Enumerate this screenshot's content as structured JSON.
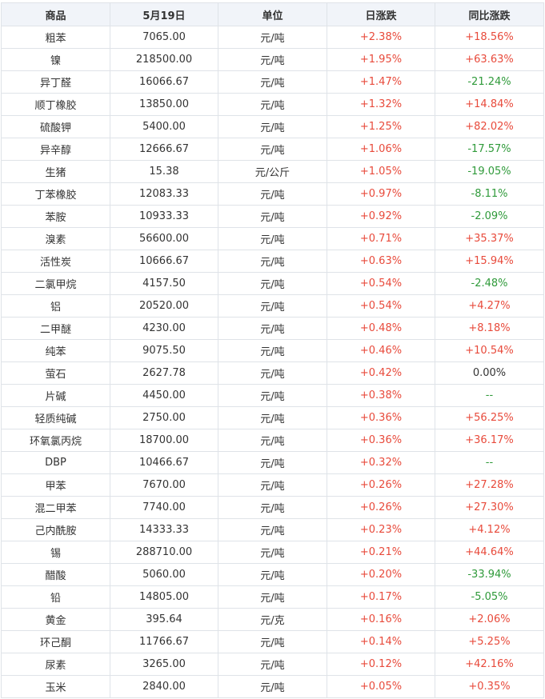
{
  "table": {
    "headers": {
      "commodity": "商品",
      "price": "5月19日",
      "unit": "单位",
      "daily_change": "日涨跌",
      "yoy_change": "同比涨跌"
    },
    "colors": {
      "up": "#e84a3b",
      "down": "#2f9a3a",
      "header_bg": "#f1f4f9",
      "border": "#dfe3e8"
    },
    "rows": [
      {
        "name": "粗苯",
        "price": "7065.00",
        "unit": "元/吨",
        "daily": "+2.38%",
        "yoy": "+18.56%"
      },
      {
        "name": "镍",
        "price": "218500.00",
        "unit": "元/吨",
        "daily": "+1.95%",
        "yoy": "+63.63%"
      },
      {
        "name": "异丁醛",
        "price": "16066.67",
        "unit": "元/吨",
        "daily": "+1.47%",
        "yoy": "-21.24%"
      },
      {
        "name": "顺丁橡胶",
        "price": "13850.00",
        "unit": "元/吨",
        "daily": "+1.32%",
        "yoy": "+14.84%"
      },
      {
        "name": "硫酸钾",
        "price": "5400.00",
        "unit": "元/吨",
        "daily": "+1.25%",
        "yoy": "+82.02%"
      },
      {
        "name": "异辛醇",
        "price": "12666.67",
        "unit": "元/吨",
        "daily": "+1.06%",
        "yoy": "-17.57%"
      },
      {
        "name": "生猪",
        "price": "15.38",
        "unit": "元/公斤",
        "daily": "+1.05%",
        "yoy": "-19.05%"
      },
      {
        "name": "丁苯橡胶",
        "price": "12083.33",
        "unit": "元/吨",
        "daily": "+0.97%",
        "yoy": "-8.11%"
      },
      {
        "name": "苯胺",
        "price": "10933.33",
        "unit": "元/吨",
        "daily": "+0.92%",
        "yoy": "-2.09%"
      },
      {
        "name": "溴素",
        "price": "56600.00",
        "unit": "元/吨",
        "daily": "+0.71%",
        "yoy": "+35.37%"
      },
      {
        "name": "活性炭",
        "price": "10666.67",
        "unit": "元/吨",
        "daily": "+0.63%",
        "yoy": "+15.94%"
      },
      {
        "name": "二氯甲烷",
        "price": "4157.50",
        "unit": "元/吨",
        "daily": "+0.54%",
        "yoy": "-2.48%"
      },
      {
        "name": "铝",
        "price": "20520.00",
        "unit": "元/吨",
        "daily": "+0.54%",
        "yoy": "+4.27%"
      },
      {
        "name": "二甲醚",
        "price": "4230.00",
        "unit": "元/吨",
        "daily": "+0.48%",
        "yoy": "+8.18%"
      },
      {
        "name": "纯苯",
        "price": "9075.50",
        "unit": "元/吨",
        "daily": "+0.46%",
        "yoy": "+10.54%"
      },
      {
        "name": "萤石",
        "price": "2627.78",
        "unit": "元/吨",
        "daily": "+0.42%",
        "yoy": "0.00%"
      },
      {
        "name": "片碱",
        "price": "4450.00",
        "unit": "元/吨",
        "daily": "+0.38%",
        "yoy": "--"
      },
      {
        "name": "轻质纯碱",
        "price": "2750.00",
        "unit": "元/吨",
        "daily": "+0.36%",
        "yoy": "+56.25%"
      },
      {
        "name": "环氧氯丙烷",
        "price": "18700.00",
        "unit": "元/吨",
        "daily": "+0.36%",
        "yoy": "+36.17%"
      },
      {
        "name": "DBP",
        "price": "10466.67",
        "unit": "元/吨",
        "daily": "+0.32%",
        "yoy": "--"
      },
      {
        "name": "甲苯",
        "price": "7670.00",
        "unit": "元/吨",
        "daily": "+0.26%",
        "yoy": "+27.28%"
      },
      {
        "name": "混二甲苯",
        "price": "7740.00",
        "unit": "元/吨",
        "daily": "+0.26%",
        "yoy": "+27.30%"
      },
      {
        "name": "己内酰胺",
        "price": "14333.33",
        "unit": "元/吨",
        "daily": "+0.23%",
        "yoy": "+4.12%"
      },
      {
        "name": "锡",
        "price": "288710.00",
        "unit": "元/吨",
        "daily": "+0.21%",
        "yoy": "+44.64%"
      },
      {
        "name": "醋酸",
        "price": "5060.00",
        "unit": "元/吨",
        "daily": "+0.20%",
        "yoy": "-33.94%"
      },
      {
        "name": "铅",
        "price": "14805.00",
        "unit": "元/吨",
        "daily": "+0.17%",
        "yoy": "-5.05%"
      },
      {
        "name": "黄金",
        "price": "395.64",
        "unit": "元/克",
        "daily": "+0.16%",
        "yoy": "+2.06%"
      },
      {
        "name": "环己酮",
        "price": "11766.67",
        "unit": "元/吨",
        "daily": "+0.14%",
        "yoy": "+5.25%"
      },
      {
        "name": "尿素",
        "price": "3265.00",
        "unit": "元/吨",
        "daily": "+0.12%",
        "yoy": "+42.16%"
      },
      {
        "name": "玉米",
        "price": "2840.00",
        "unit": "元/吨",
        "daily": "+0.05%",
        "yoy": "+0.35%"
      }
    ]
  }
}
